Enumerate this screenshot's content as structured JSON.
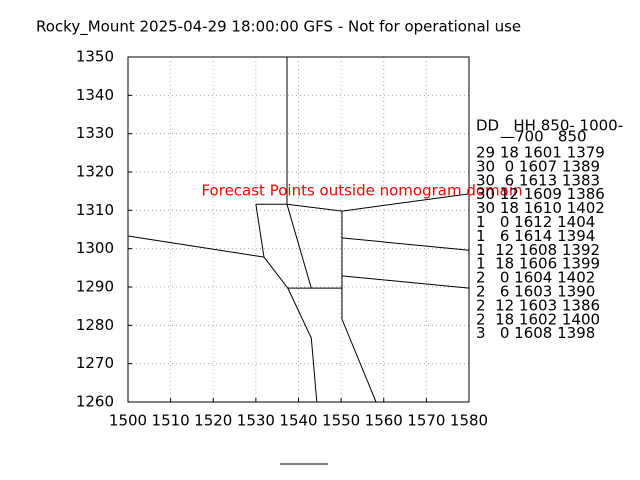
{
  "chart_data": {
    "type": "line",
    "title": "Rocky_Mount 2025-04-29 18:00:00 GFS - Not for operational use",
    "annotation": "Forecast Points outside nomogram domain",
    "xlim": [
      1500,
      1580
    ],
    "xticks": [
      1500,
      1510,
      1520,
      1530,
      1540,
      1550,
      1560,
      1570,
      1580
    ],
    "ylim": [
      1260,
      1350
    ],
    "yticks": [
      1260,
      1270,
      1280,
      1290,
      1300,
      1310,
      1320,
      1330,
      1340,
      1350
    ],
    "grid": true,
    "color": "#000000",
    "annotation_color": "#ff0000",
    "segments": [
      {
        "x": [
          1537.3,
          1537.3
        ],
        "y": [
          1350,
          1311.6
        ]
      },
      {
        "x": [
          1530,
          1537.3
        ],
        "y": [
          1311.6,
          1311.6
        ]
      },
      {
        "x": [
          1537.3,
          1550.2,
          1580
        ],
        "y": [
          1311.6,
          1309.8,
          1314.3
        ]
      },
      {
        "x": [
          1550.2,
          1550.2
        ],
        "y": [
          1309.8,
          1289.7
        ]
      },
      {
        "x": [
          1530,
          1531.9
        ],
        "y": [
          1311.6,
          1297.8
        ]
      },
      {
        "x": [
          1500,
          1531.9
        ],
        "y": [
          1303.3,
          1297.8
        ]
      },
      {
        "x": [
          1531.9,
          1537.5
        ],
        "y": [
          1297.8,
          1289.7
        ]
      },
      {
        "x": [
          1537.3,
          1543
        ],
        "y": [
          1311.6,
          1289.7
        ]
      },
      {
        "x": [
          1537.5,
          1550.2
        ],
        "y": [
          1289.7,
          1289.7
        ]
      },
      {
        "x": [
          1550.2,
          1580
        ],
        "y": [
          1302.8,
          1299.6
        ]
      },
      {
        "x": [
          1550.2,
          1580
        ],
        "y": [
          1292.9,
          1289.7
        ]
      },
      {
        "x": [
          1550.2,
          1550.2,
          1558.2
        ],
        "y": [
          1289.7,
          1281.6,
          1260
        ]
      },
      {
        "x": [
          1537.5,
          1543,
          1544.3
        ],
        "y": [
          1289.7,
          1276.7,
          1260
        ]
      }
    ],
    "table_header": [
      "DD   HH 850- 1000-",
      "—700   850"
    ],
    "table_rows": [
      "29 18 1601 1379",
      "30  0 1607 1389",
      "30  6 1613 1383",
      "30 12 1609 1386",
      "30 18 1610 1402",
      "1   0 1612 1404",
      "1   6 1614 1394",
      "1  12 1608 1392",
      "1  18 1606 1399",
      "2   0 1604 1402",
      "2   6 1603 1390",
      "2  12 1603 1386",
      "2  18 1602 1400",
      "3   0 1608 1398"
    ]
  }
}
